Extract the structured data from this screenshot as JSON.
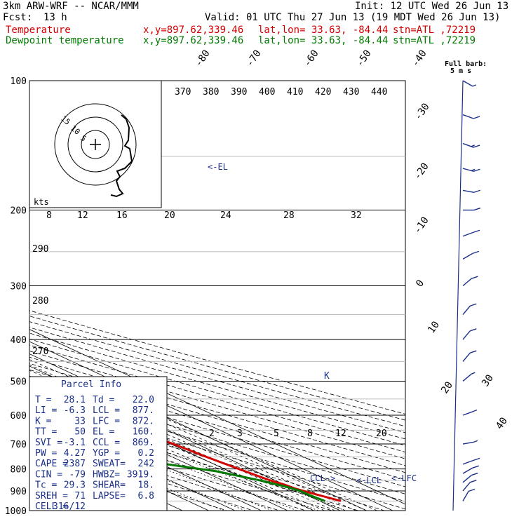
{
  "header": {
    "model": "3km ARW-WRF -- NCAR/MMM",
    "init": "Init: 12 UTC Wed 26 Jun 13",
    "fcst_label": "Fcst:",
    "fcst_value": "13 h",
    "valid": "Valid: 01 UTC Thu 27 Jun 13 (19 MDT Wed 26 Jun 13)",
    "temp_line": {
      "name": "Temperature",
      "xy": "x,y=897.62,339.46",
      "latlon": "lat,lon= 33.63, -84.44",
      "stn": "stn=ATL ,72219",
      "color": "#d40000"
    },
    "dew_line": {
      "name": "Dewpoint temperature",
      "xy": "x,y=897.62,339.46",
      "latlon": "lat,lon= 33.63, -84.44",
      "stn": "stn=ATL ,72219",
      "color": "#007a00"
    }
  },
  "barb_label": {
    "line1": "Full barb:",
    "line2": "5 m s"
  },
  "hodograph": {
    "ring_labels": [
      "15",
      "10",
      "5"
    ],
    "unit": "kts"
  },
  "annotations": {
    "el": "<-EL",
    "ccl": "CCL->",
    "lcl": "<-LCL",
    "lfc": "<-LFC"
  },
  "parcel_info": {
    "title": "Parcel Info",
    "rows": [
      [
        "T  =",
        "28.1",
        "Td =",
        "22.0"
      ],
      [
        "LI =",
        "-6.3",
        "LCL =",
        "877."
      ],
      [
        "K  =",
        "33",
        "LFC =",
        "872."
      ],
      [
        "TT =",
        "50",
        "EL  =",
        "160."
      ],
      [
        "SVI =",
        "-3.1",
        "CCL =",
        "869."
      ],
      [
        "PW =",
        "4.27",
        "YGP =",
        "0.2"
      ],
      [
        "CAPE =",
        "2387",
        "SWEAT=",
        "242"
      ],
      [
        "CIN =",
        "-79",
        "HWBZ=",
        "3919."
      ],
      [
        "Tc =",
        "29.3",
        "SHEAR=",
        "18."
      ],
      [
        "SREH =",
        "71",
        "LAPSE=",
        "6.8"
      ],
      [
        "CELL =",
        "316/12",
        "",
        ""
      ]
    ]
  },
  "chart_data": {
    "type": "line",
    "subtype": "skew-T log-P sounding",
    "y_axis": {
      "label": "",
      "scale": "log-pressure (hPa), inverted",
      "ticks": [
        100,
        200,
        300,
        400,
        500,
        600,
        700,
        800,
        900,
        1000
      ],
      "range": [
        1000,
        100
      ]
    },
    "isotherm_labels": [
      "-80",
      "-70",
      "-60",
      "-50",
      "-40",
      "-30",
      "-20",
      "-10",
      "0",
      "10",
      "20",
      "30",
      "40"
    ],
    "theta_labels_top": [
      "370",
      "380",
      "390",
      "400",
      "410",
      "420",
      "430",
      "440"
    ],
    "theta_labels_left": [
      "290",
      "280",
      "270"
    ],
    "mixing_ratio_top": [
      "8",
      "12",
      "16",
      "20",
      "24",
      "28",
      "32"
    ],
    "mixing_ratio_low": [
      "2",
      "3",
      "5",
      "8",
      "12",
      "20"
    ],
    "series": [
      {
        "name": "Temperature",
        "color": "#d40000",
        "points": [
          [
            100,
            -70
          ],
          [
            120,
            -72
          ],
          [
            145,
            -67
          ],
          [
            160,
            -64
          ],
          [
            180,
            -62
          ],
          [
            200,
            -59
          ],
          [
            250,
            -46
          ],
          [
            300,
            -35
          ],
          [
            350,
            -25
          ],
          [
            400,
            -16
          ],
          [
            450,
            -9
          ],
          [
            500,
            -4
          ],
          [
            550,
            1
          ],
          [
            600,
            5
          ],
          [
            650,
            8
          ],
          [
            700,
            11
          ],
          [
            750,
            13
          ],
          [
            800,
            15.5
          ],
          [
            850,
            18
          ],
          [
            870,
            20
          ],
          [
            890,
            21
          ],
          [
            920,
            24.5
          ],
          [
            950,
            28.1
          ]
        ]
      },
      {
        "name": "Dewpoint temperature",
        "color": "#007a00",
        "points": [
          [
            100,
            -85
          ],
          [
            130,
            -88
          ],
          [
            160,
            -93
          ],
          [
            180,
            -93
          ],
          [
            200,
            -88
          ],
          [
            250,
            -75
          ],
          [
            300,
            -62
          ],
          [
            350,
            -58
          ],
          [
            400,
            -44
          ],
          [
            450,
            -40
          ],
          [
            500,
            -30
          ],
          [
            550,
            -30
          ],
          [
            600,
            -24
          ],
          [
            650,
            -18
          ],
          [
            700,
            -14
          ],
          [
            750,
            -12
          ],
          [
            780,
            -8
          ],
          [
            810,
            5
          ],
          [
            850,
            14
          ],
          [
            880,
            19
          ],
          [
            900,
            21
          ],
          [
            920,
            21
          ],
          [
            950,
            22
          ]
        ]
      }
    ],
    "wind_profile_color": "#1a2f8a",
    "wind_barbs": [
      {
        "p": 100,
        "dir": 300,
        "spd": 5
      },
      {
        "p": 120,
        "dir": 290,
        "spd": 10
      },
      {
        "p": 140,
        "dir": 290,
        "spd": 15
      },
      {
        "p": 160,
        "dir": 285,
        "spd": 15
      },
      {
        "p": 180,
        "dir": 280,
        "spd": 10
      },
      {
        "p": 200,
        "dir": 270,
        "spd": 10
      },
      {
        "p": 230,
        "dir": 250,
        "spd": 10
      },
      {
        "p": 260,
        "dir": 240,
        "spd": 10
      },
      {
        "p": 300,
        "dir": 230,
        "spd": 10
      },
      {
        "p": 350,
        "dir": 220,
        "spd": 10
      },
      {
        "p": 400,
        "dir": 220,
        "spd": 10
      },
      {
        "p": 450,
        "dir": 220,
        "spd": 10
      },
      {
        "p": 500,
        "dir": 230,
        "spd": 5
      },
      {
        "p": 600,
        "dir": 250,
        "spd": 5
      },
      {
        "p": 700,
        "dir": 260,
        "spd": 5
      },
      {
        "p": 780,
        "dir": 250,
        "spd": 10
      },
      {
        "p": 820,
        "dir": 240,
        "spd": 10
      },
      {
        "p": 860,
        "dir": 230,
        "spd": 10
      },
      {
        "p": 900,
        "dir": 220,
        "spd": 10
      },
      {
        "p": 950,
        "dir": 210,
        "spd": 10
      }
    ]
  }
}
